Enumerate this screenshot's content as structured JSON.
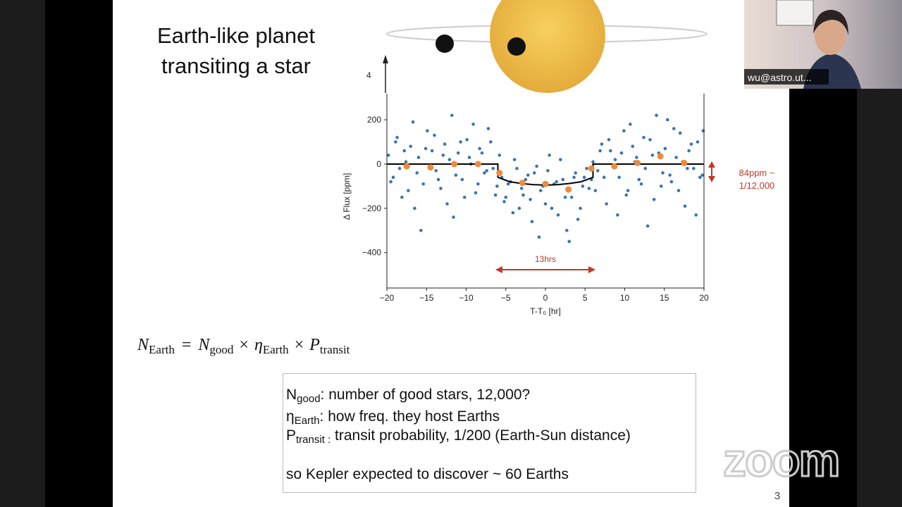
{
  "slide": {
    "title": [
      "Earth-like planet",
      "transiting a star"
    ],
    "image_label": "4",
    "equation": [
      "N",
      "Earth",
      "=",
      "N",
      "good",
      "×",
      "η",
      "Earth",
      "×",
      "P",
      "transit"
    ],
    "box": [
      [
        "N",
        "good",
        ":  number of good stars, 12,000?"
      ],
      [
        "η",
        "Earth",
        ": how freq. they host Earths"
      ],
      [
        "P",
        "transit :",
        " transit probability, 1/200 (Earth-Sun distance)"
      ],
      [
        "so Kepler expected to discover ~ 60 Earths"
      ]
    ],
    "page_number": "3"
  },
  "zoom": {
    "name_tag": "wu@astro.ut...",
    "logo": "zoom"
  },
  "chart_data": {
    "type": "scatter",
    "xlabel": "T-T₀ [hr]",
    "ylabel": "Δ Flux [ppm]",
    "xlim": [
      -20,
      20
    ],
    "ylim": [
      -560,
      318
    ],
    "xticks": [
      {
        "value": -20,
        "label": "−20"
      },
      {
        "value": -15,
        "label": "−15"
      },
      {
        "value": -10,
        "label": "−10"
      },
      {
        "value": -5,
        "label": "−5"
      },
      0,
      5,
      10,
      15,
      20
    ],
    "yticks": [
      {
        "value": -400,
        "label": "−400"
      },
      {
        "value": -200,
        "label": "−200"
      },
      0,
      200
    ],
    "annotations": [
      "13hrs",
      "84ppm ~",
      "1/12,000"
    ],
    "series": [
      {
        "color": "#3a75b0",
        "mark": "dot",
        "x": [
          -19.8,
          -19.2,
          -18.7,
          -18.1,
          -17.6,
          -17.0,
          -16.5,
          -16.0,
          -15.4,
          -14.9,
          -14.3,
          -13.8,
          -13.2,
          -12.7,
          -12.1,
          -11.6,
          -11.0,
          -10.5,
          -9.9,
          -9.4,
          -8.8,
          -8.3,
          -7.7,
          -7.2,
          -6.6,
          -6.1,
          -5.5,
          -5.0,
          -4.4,
          -3.9,
          -3.3,
          -2.8,
          -2.2,
          -1.7,
          -1.1,
          -0.6,
          0.0,
          0.5,
          1.1,
          1.6,
          2.2,
          2.7,
          3.3,
          3.8,
          4.4,
          4.9,
          5.5,
          6.0,
          6.6,
          7.1,
          7.7,
          8.2,
          8.8,
          9.3,
          9.9,
          10.4,
          11.0,
          11.5,
          12.1,
          12.6,
          13.2,
          13.7,
          14.3,
          14.8,
          15.4,
          15.9,
          16.5,
          17.0,
          17.6,
          18.1,
          18.7,
          19.2,
          19.8
        ],
        "values": [
          40,
          -60,
          120,
          -150,
          10,
          80,
          -200,
          30,
          -90,
          150,
          60,
          -30,
          -110,
          90,
          20,
          -240,
          50,
          -70,
          110,
          0,
          -130,
          70,
          -40,
          160,
          -20,
          -100,
          -60,
          -150,
          -80,
          20,
          -200,
          -140,
          -50,
          -260,
          -10,
          -120,
          -180,
          40,
          -90,
          -230,
          -70,
          -300,
          -150,
          -40,
          -200,
          -60,
          -110,
          10,
          -30,
          90,
          -180,
          60,
          20,
          -60,
          150,
          -120,
          80,
          30,
          -90,
          -20,
          110,
          -160,
          50,
          -40,
          200,
          -80,
          30,
          140,
          -190,
          60,
          -20,
          100,
          -50
        ]
      },
      {
        "color": "#3a75b0",
        "mark": "dot",
        "x": [
          -19.5,
          -18.9,
          -18.4,
          -17.8,
          -17.3,
          -16.7,
          -16.2,
          -15.7,
          -15.1,
          -14.6,
          -14.0,
          -13.5,
          -12.9,
          -12.4,
          -11.8,
          -11.3,
          -10.7,
          -10.2,
          -9.6,
          -9.1,
          -8.5,
          -8.0,
          -7.4,
          -6.9,
          -6.3,
          -5.8,
          -5.2,
          -4.7,
          -4.1,
          -3.6,
          -3.0,
          -2.5,
          -1.9,
          -1.4,
          -0.8,
          -0.3,
          0.3,
          0.8,
          1.4,
          1.9,
          2.5,
          3.0,
          3.6,
          4.1,
          4.7,
          5.2,
          5.8,
          6.3,
          6.9,
          7.4,
          8.0,
          8.5,
          9.1,
          9.6,
          10.2,
          10.7,
          11.3,
          11.8,
          12.4,
          12.9,
          13.5,
          14.0,
          14.6,
          15.1,
          15.7,
          16.2,
          16.8,
          17.3,
          17.9,
          18.4,
          19.0,
          19.5,
          19.9
        ],
        "values": [
          -80,
          100,
          -20,
          60,
          -120,
          190,
          -40,
          -300,
          70,
          -10,
          130,
          -70,
          40,
          -180,
          220,
          -50,
          100,
          -150,
          30,
          180,
          -90,
          50,
          -30,
          100,
          -140,
          40,
          -170,
          -90,
          -220,
          -20,
          -110,
          -70,
          -160,
          -40,
          -330,
          -100,
          -30,
          -200,
          -80,
          20,
          -150,
          -350,
          -60,
          -250,
          -100,
          -20,
          -70,
          -120,
          60,
          -60,
          110,
          -10,
          -230,
          50,
          -140,
          180,
          10,
          -70,
          120,
          -280,
          40,
          220,
          -100,
          70,
          -50,
          160,
          -120,
          10,
          -20,
          90,
          -230,
          -60,
          150
        ]
      },
      {
        "color": "#000000",
        "mark": "line",
        "x": [
          -20,
          -6,
          -6,
          -4.5,
          -3,
          -1.5,
          0,
          1.5,
          3,
          4.5,
          6,
          6,
          20
        ],
        "values": [
          0,
          0,
          -60,
          -80,
          -88,
          -93,
          -95,
          -93,
          -88,
          -80,
          -60,
          0,
          0
        ]
      },
      {
        "color": "#f08a3c",
        "mark": "bin",
        "x": [
          -17.5,
          -14.5,
          -11.5,
          -8.5,
          -5.8,
          -2.9,
          0,
          2.9,
          5.8,
          8.7,
          11.6,
          14.5,
          17.5
        ],
        "values": [
          -10,
          -15,
          0,
          0,
          -40,
          -85,
          -90,
          -115,
          -20,
          -10,
          5,
          35,
          5
        ]
      }
    ]
  }
}
